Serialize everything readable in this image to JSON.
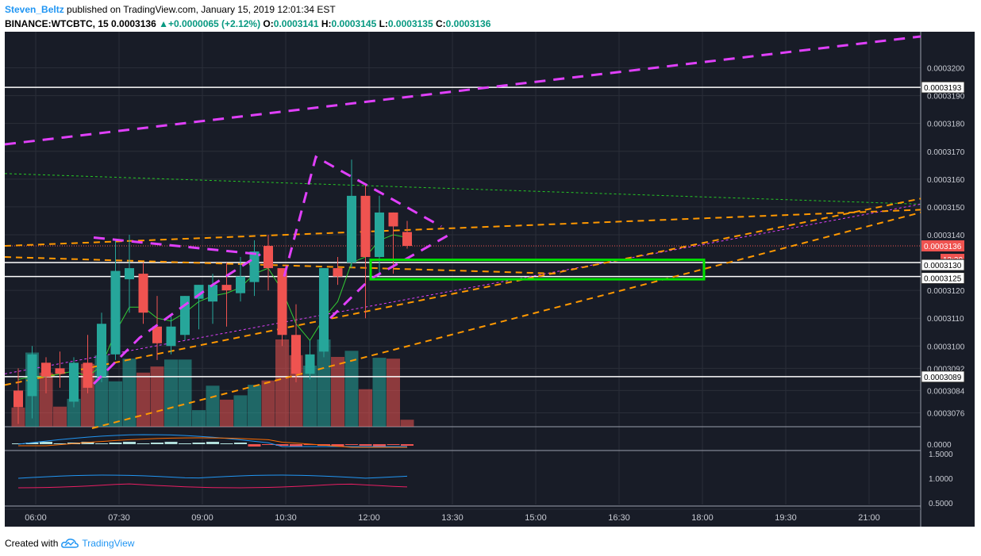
{
  "header": {
    "author": "Steven_Beltz",
    "published_text": " published on TradingView.com, January 15, 2019 12:01:34 EST",
    "symbol": "BINANCE:WTCBTC, 15",
    "last": "0.0003136",
    "change": "+0.0000065 (+2.12%)",
    "o_label": "O:",
    "o_value": "0.0003141",
    "h_label": "H:",
    "h_value": "0.0003145",
    "l_label": "L:",
    "l_value": "0.0003135",
    "c_label": "C:",
    "c_value": "0.0003136"
  },
  "footer": {
    "created_with": "Created with",
    "brand": "TradingView"
  },
  "colors": {
    "background": "#181c27",
    "up": "#26a69a",
    "down": "#ef5350",
    "magenta": "#e040fb",
    "orange": "#ff9800",
    "lime": "#00e000"
  },
  "chart_data": {
    "type": "candlestick",
    "symbol": "BINANCE:WTCBTC",
    "interval": "15",
    "y_range": [
      0.0003071,
      0.0003205
    ],
    "price_ticks": [
      "0.0003200",
      "0.0003190",
      "0.0003180",
      "0.0003170",
      "0.0003160",
      "0.0003150",
      "0.0003140",
      "0.0003130",
      "0.0003120",
      "0.0003110",
      "0.0003100",
      "0.0003092",
      "0.0003084",
      "0.0003076"
    ],
    "time_ticks": [
      "06:00",
      "07:30",
      "09:00",
      "10:30",
      "12:00",
      "13:30",
      "15:00",
      "16:30",
      "18:00",
      "19:30",
      "21:00"
    ],
    "price_labels": [
      {
        "text": "0.0003193",
        "style": "white"
      },
      {
        "text": "0.0003136",
        "style": "red"
      },
      {
        "text": "13:30",
        "style": "red"
      },
      {
        "text": "0.0003130",
        "style": "white"
      },
      {
        "text": "0.0003125",
        "style": "white"
      },
      {
        "text": "0.0003089",
        "style": "white"
      }
    ],
    "horizontal_lines": [
      0.0003193,
      0.000313,
      0.0003125,
      0.0003089
    ],
    "candles": [
      {
        "o": 0.0003084,
        "h": 0.0003092,
        "l": 0.0003072,
        "c": 0.0003078
      },
      {
        "o": 0.0003082,
        "h": 0.00031,
        "l": 0.0003074,
        "c": 0.0003097
      },
      {
        "o": 0.0003094,
        "h": 0.0003096,
        "l": 0.0003083,
        "c": 0.0003089
      },
      {
        "o": 0.0003092,
        "h": 0.0003098,
        "l": 0.0003085,
        "c": 0.000309
      },
      {
        "o": 0.000308,
        "h": 0.0003096,
        "l": 0.0003078,
        "c": 0.0003094
      },
      {
        "o": 0.0003094,
        "h": 0.0003104,
        "l": 0.0003083,
        "c": 0.0003085
      },
      {
        "o": 0.0003089,
        "h": 0.0003112,
        "l": 0.0003087,
        "c": 0.0003108
      },
      {
        "o": 0.0003097,
        "h": 0.0003138,
        "l": 0.0003095,
        "c": 0.0003127
      },
      {
        "o": 0.0003124,
        "h": 0.000314,
        "l": 0.0003112,
        "c": 0.0003128
      },
      {
        "o": 0.0003126,
        "h": 0.000313,
        "l": 0.0003108,
        "c": 0.0003112
      },
      {
        "o": 0.0003107,
        "h": 0.0003118,
        "l": 0.0003095,
        "c": 0.0003101
      },
      {
        "o": 0.00031,
        "h": 0.0003111,
        "l": 0.0003097,
        "c": 0.0003107
      },
      {
        "o": 0.0003104,
        "h": 0.0003118,
        "l": 0.0003102,
        "c": 0.0003118
      },
      {
        "o": 0.0003117,
        "h": 0.0003122,
        "l": 0.0003106,
        "c": 0.0003122
      },
      {
        "o": 0.0003116,
        "h": 0.0003126,
        "l": 0.0003108,
        "c": 0.0003122
      },
      {
        "o": 0.0003122,
        "h": 0.000313,
        "l": 0.0003107,
        "c": 0.000312
      },
      {
        "o": 0.0003119,
        "h": 0.0003132,
        "l": 0.0003116,
        "c": 0.0003125
      },
      {
        "o": 0.0003123,
        "h": 0.0003138,
        "l": 0.0003118,
        "c": 0.0003134
      },
      {
        "o": 0.0003136,
        "h": 0.000314,
        "l": 0.000312,
        "c": 0.0003128
      },
      {
        "o": 0.0003128,
        "h": 0.0003128,
        "l": 0.00031,
        "c": 0.0003104
      },
      {
        "o": 0.0003104,
        "h": 0.0003115,
        "l": 0.0003087,
        "c": 0.000309
      },
      {
        "o": 0.000309,
        "h": 0.0003102,
        "l": 0.0003088,
        "c": 0.0003097
      },
      {
        "o": 0.0003098,
        "h": 0.0003128,
        "l": 0.0003096,
        "c": 0.0003128
      },
      {
        "o": 0.0003128,
        "h": 0.0003132,
        "l": 0.0003122,
        "c": 0.0003125
      },
      {
        "o": 0.000313,
        "h": 0.0003167,
        "l": 0.0003128,
        "c": 0.0003154
      },
      {
        "o": 0.0003154,
        "h": 0.0003158,
        "l": 0.000311,
        "c": 0.0003132
      },
      {
        "o": 0.0003132,
        "h": 0.0003154,
        "l": 0.0003125,
        "c": 0.0003148
      },
      {
        "o": 0.0003148,
        "h": 0.0003148,
        "l": 0.0003126,
        "c": 0.0003143
      },
      {
        "o": 0.0003141,
        "h": 0.0003145,
        "l": 0.0003135,
        "c": 0.0003136
      }
    ],
    "volumes": [
      0.22,
      0.85,
      0.62,
      0.23,
      0.32,
      0.72,
      0.82,
      0.52,
      0.78,
      0.62,
      0.69,
      0.77,
      0.77,
      0.19,
      0.47,
      0.31,
      0.36,
      0.48,
      0.53,
      1.0,
      0.82,
      0.7,
      1.0,
      0.8,
      0.87,
      0.43,
      0.79,
      0.78,
      0.08
    ],
    "macd_axis": [
      "0.0000"
    ],
    "rsi_axis": [
      "1.5000",
      "1.0000",
      "0.5000"
    ]
  }
}
